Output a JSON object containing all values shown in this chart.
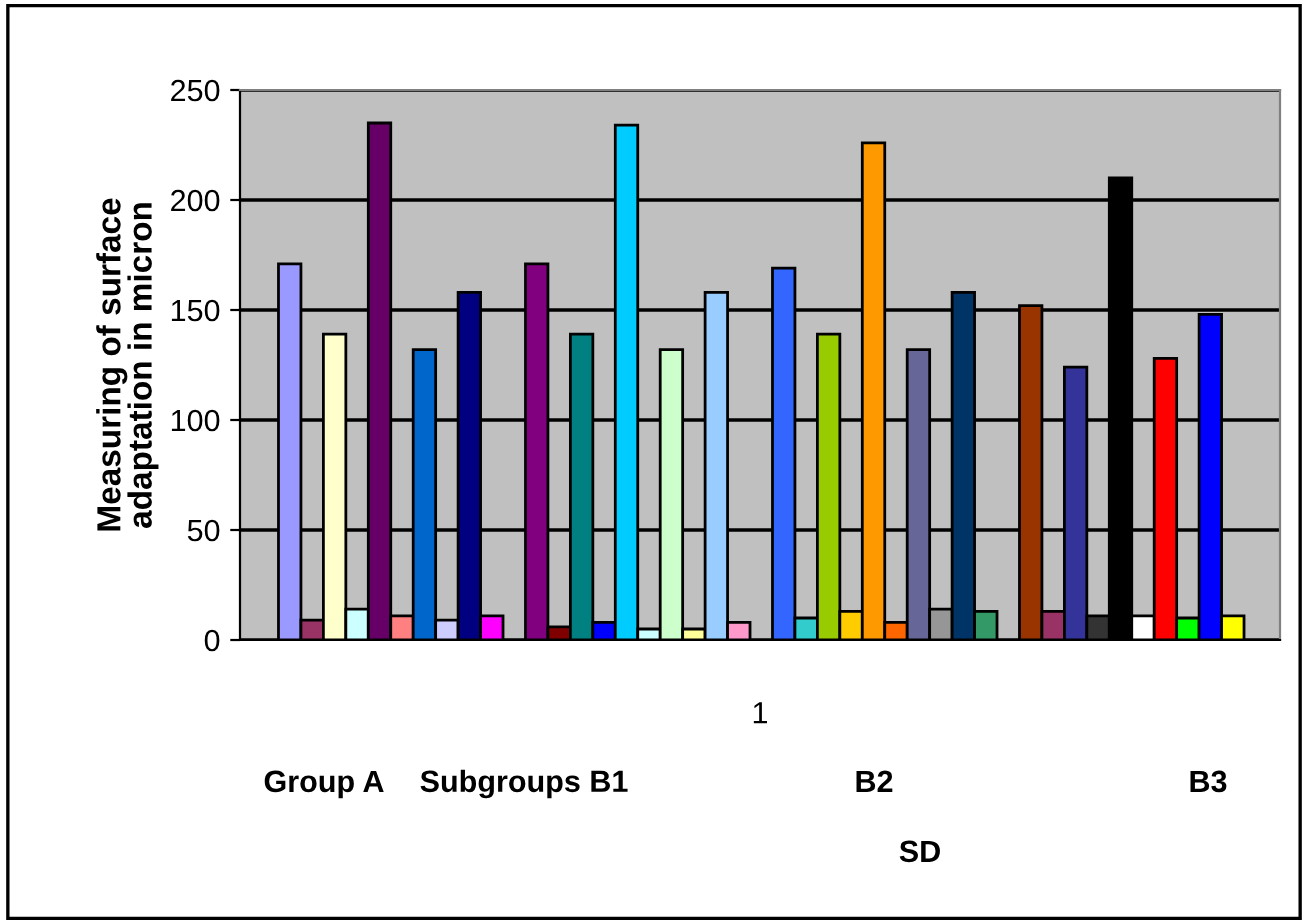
{
  "chart_data": {
    "type": "bar",
    "ylabel": "Measuring of surface\nadaptation in micron",
    "categories": [
      "1"
    ],
    "series": [
      {
        "color": "#9999ff",
        "values": [
          171
        ]
      },
      {
        "color": "#993366",
        "values": [
          9
        ]
      },
      {
        "color": "#ffffcc",
        "values": [
          139
        ]
      },
      {
        "color": "#ccffff",
        "values": [
          14
        ]
      },
      {
        "color": "#660066",
        "values": [
          235
        ]
      },
      {
        "color": "#ff8080",
        "values": [
          11
        ]
      },
      {
        "color": "#0066cc",
        "values": [
          132
        ]
      },
      {
        "color": "#ccccff",
        "values": [
          9
        ]
      },
      {
        "color": "#000080",
        "values": [
          158
        ]
      },
      {
        "color": "#ff00ff",
        "values": [
          11
        ]
      },
      {
        "color": "#800080",
        "values": [
          171
        ]
      },
      {
        "color": "#800000",
        "values": [
          6
        ]
      },
      {
        "color": "#008080",
        "values": [
          139
        ]
      },
      {
        "color": "#0000ff",
        "values": [
          8
        ]
      },
      {
        "color": "#00ccff",
        "values": [
          234
        ]
      },
      {
        "color": "#ccffff",
        "values": [
          5
        ]
      },
      {
        "color": "#ccffcc",
        "values": [
          132
        ]
      },
      {
        "color": "#ffff99",
        "values": [
          5
        ]
      },
      {
        "color": "#99ccff",
        "values": [
          158
        ]
      },
      {
        "color": "#ff99cc",
        "values": [
          8
        ]
      },
      {
        "color": "#3366ff",
        "values": [
          169
        ]
      },
      {
        "color": "#33cccc",
        "values": [
          10
        ]
      },
      {
        "color": "#99cc00",
        "values": [
          139
        ]
      },
      {
        "color": "#ffcc00",
        "values": [
          13
        ]
      },
      {
        "color": "#ff9900",
        "values": [
          226
        ]
      },
      {
        "color": "#ff6600",
        "values": [
          8
        ]
      },
      {
        "color": "#666699",
        "values": [
          132
        ]
      },
      {
        "color": "#969696",
        "values": [
          14
        ]
      },
      {
        "color": "#003366",
        "values": [
          158
        ]
      },
      {
        "color": "#339966",
        "values": [
          13
        ]
      },
      {
        "color": "#993300",
        "values": [
          152
        ]
      },
      {
        "color": "#993366",
        "values": [
          13
        ]
      },
      {
        "color": "#333399",
        "values": [
          124
        ]
      },
      {
        "color": "#333333",
        "values": [
          11
        ]
      },
      {
        "color": "#000000",
        "values": [
          210
        ]
      },
      {
        "color": "#ffffff",
        "values": [
          11
        ]
      },
      {
        "color": "#ff0000",
        "values": [
          128
        ]
      },
      {
        "color": "#00ff00",
        "values": [
          10
        ]
      },
      {
        "color": "#0000ff",
        "values": [
          148
        ]
      },
      {
        "color": "#ffff00",
        "values": [
          11
        ]
      }
    ],
    "ylim": [
      0,
      250
    ],
    "yticks": [
      0,
      50,
      100,
      150,
      200,
      250
    ],
    "grid": "y",
    "legend": false,
    "annotations": [
      "Group A",
      "Subgroups B1",
      "B2",
      "B3",
      "SD"
    ]
  }
}
